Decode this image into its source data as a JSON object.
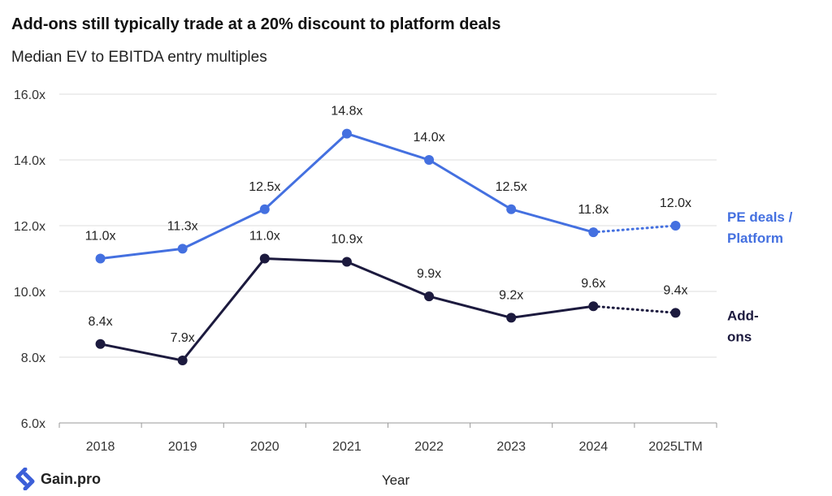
{
  "chart_data": {
    "type": "line",
    "title": "Add-ons still typically trade at a 20% discount to platform deals",
    "subtitle": "Median EV to EBITDA entry multiples",
    "xlabel": "Year",
    "ylabel": "",
    "categories": [
      "2018",
      "2019",
      "2020",
      "2021",
      "2022",
      "2023",
      "2024",
      "2025LTM"
    ],
    "ylim": [
      6,
      16
    ],
    "yticks": [
      6,
      8,
      10,
      12,
      14,
      16
    ],
    "ytick_labels": [
      "6.0x",
      "8.0x",
      "10.0x",
      "12.0x",
      "14.0x",
      "16.0x"
    ],
    "grid": "horizontal",
    "legend": "right (end-of-line labels)",
    "series": [
      {
        "name": "PE deals / Platform",
        "name_lines": [
          "PE deals /",
          "Platform"
        ],
        "color": "#4470E0",
        "values": [
          11.0,
          11.3,
          12.5,
          14.8,
          14.0,
          12.5,
          11.8,
          12.0
        ],
        "labels": [
          "11.0x",
          "11.3x",
          "12.5x",
          "14.8x",
          "14.0x",
          "12.5x",
          "11.8x",
          "12.0x"
        ],
        "dotted_last_segment": true
      },
      {
        "name": "Add-ons",
        "name_lines": [
          "Add-",
          "ons"
        ],
        "color": "#1C1A3E",
        "values": [
          8.4,
          7.9,
          11.0,
          10.9,
          9.85,
          9.2,
          9.55,
          9.35
        ],
        "labels": [
          "8.4x",
          "7.9x",
          "11.0x",
          "10.9x",
          "9.9x",
          "9.2x",
          "9.6x",
          "9.4x"
        ],
        "dotted_last_segment": true
      }
    ]
  },
  "brand": {
    "name": "Gain.pro",
    "logo_icon": "gain-pro-logo-icon",
    "color": "#3C5FD8"
  }
}
